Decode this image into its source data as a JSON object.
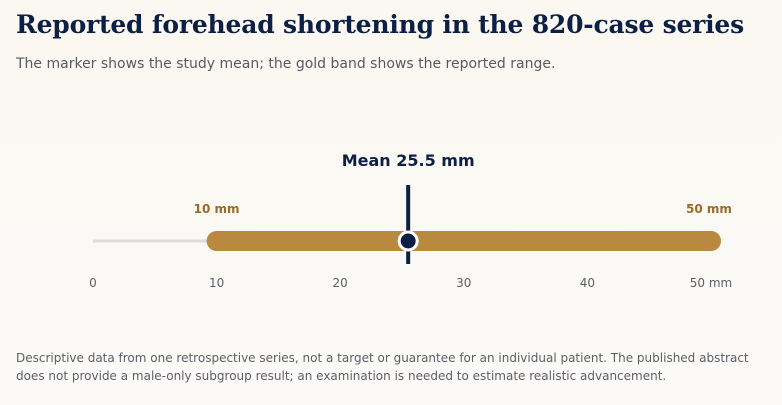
{
  "title": "Reported forehead shortening in the 820-case series",
  "subtitle": "The marker shows the study mean; the gold band shows the reported range.",
  "chart_data": {
    "type": "range-bar",
    "axis": {
      "min": 0,
      "max": 50,
      "ticks": [
        "0",
        "10",
        "20",
        "30",
        "40",
        "50 mm"
      ]
    },
    "range": {
      "low": 10,
      "high": 50,
      "low_label": "10 mm",
      "high_label": "50 mm"
    },
    "mean": {
      "value": 25.5,
      "label": "Mean 25.5 mm"
    },
    "colors": {
      "band": "#b8893f",
      "track": "#dcdcdc",
      "marker": "#0c1f45",
      "range_label": "#9a6b26"
    }
  },
  "footnote": "Descriptive data from one retrospective series, not a target or guarantee for an individual patient. The published abstract does not provide a male-only subgroup result; an examination is needed to estimate realistic advancement."
}
